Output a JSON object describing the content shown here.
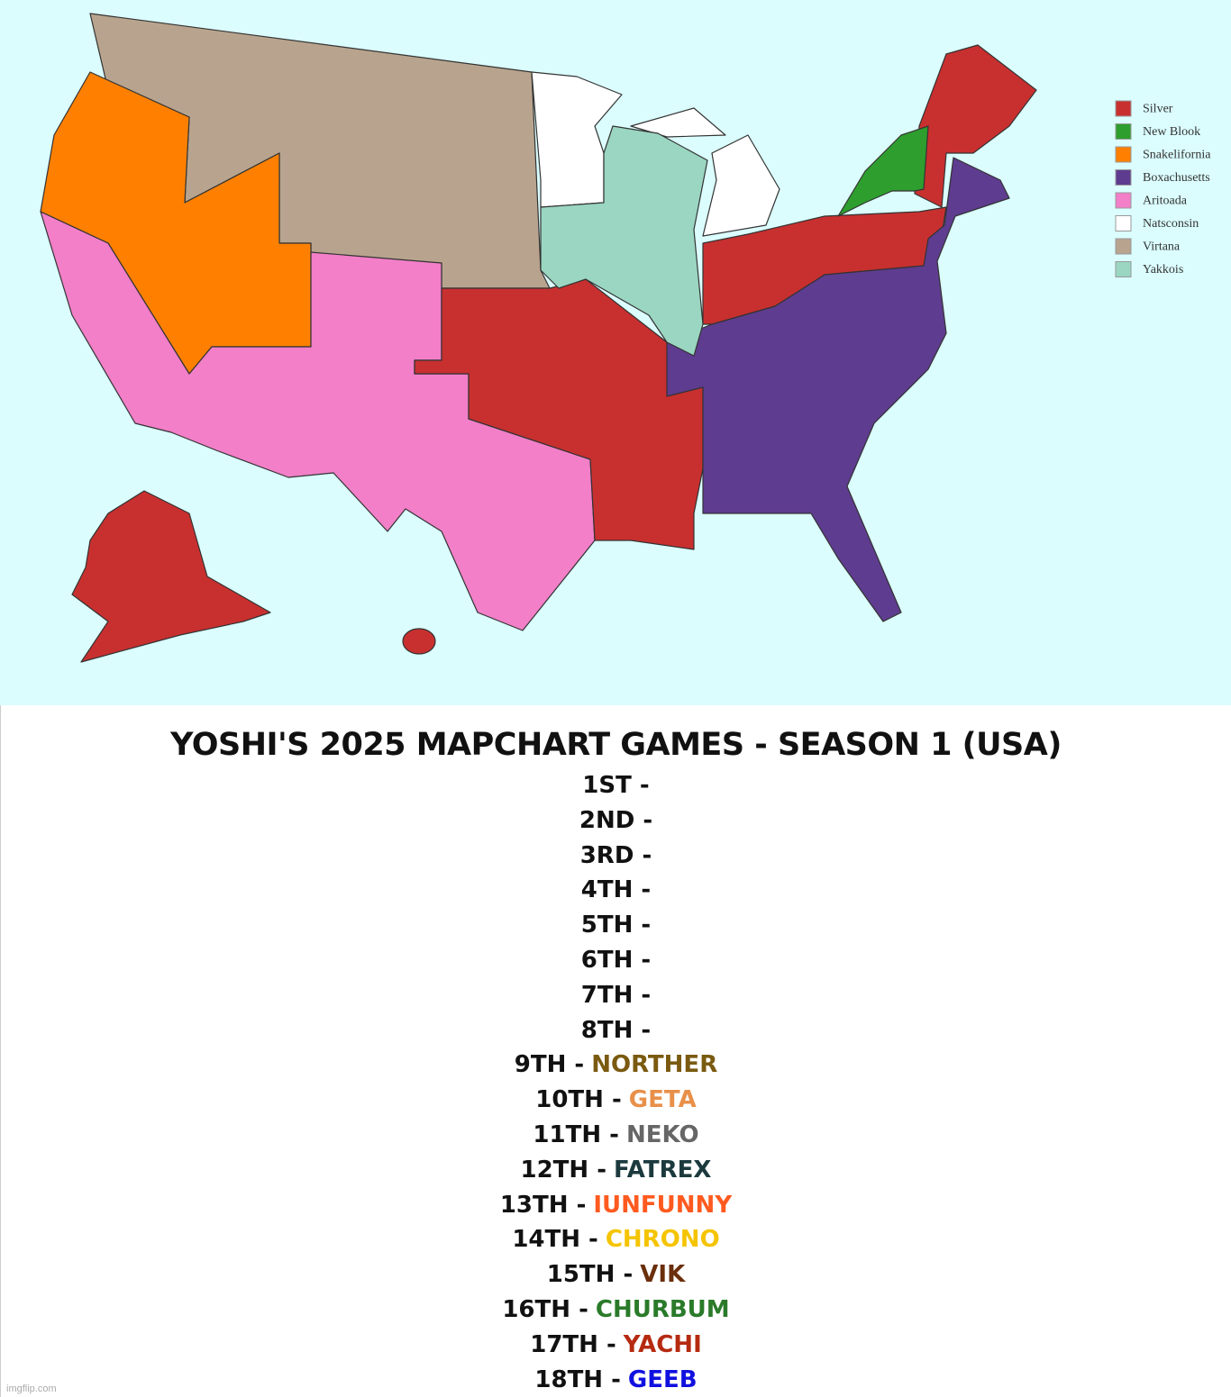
{
  "legend": [
    {
      "name": "Silver",
      "color": "#c8302f"
    },
    {
      "name": "New Blook",
      "color": "#2e9e2e"
    },
    {
      "name": "Snakelifornia",
      "color": "#ff8000"
    },
    {
      "name": "Boxachusetts",
      "color": "#5e3c8f"
    },
    {
      "name": "Aritoada",
      "color": "#f27fc8"
    },
    {
      "name": "Natsconsin",
      "color": "#ffffff"
    },
    {
      "name": "Virtana",
      "color": "#b8a48e"
    },
    {
      "name": "Yakkois",
      "color": "#9ad6c2"
    }
  ],
  "title": "YOSHI'S 2025 MAPCHART GAMES - SEASON 1 (USA)",
  "rankings": [
    {
      "place": "1ST -"
    },
    {
      "place": "2ND -"
    },
    {
      "place": "3RD -"
    },
    {
      "place": "4TH -"
    },
    {
      "place": "5TH -"
    },
    {
      "place": "6TH -"
    },
    {
      "place": "7TH -"
    },
    {
      "place": "8TH -"
    },
    {
      "place": "9TH -",
      "name": "NORTHER",
      "color": "#7a5a10"
    },
    {
      "place": "10TH -",
      "name": "GETA",
      "color": "#e8904a"
    },
    {
      "place": "11TH -",
      "name": "NEKO",
      "color": "#666666"
    },
    {
      "place": "12TH -",
      "name": "FATREX",
      "color": "#1c3a3e"
    },
    {
      "place": "13TH -",
      "name": "IUNFUNNY",
      "color": "#ff5a1f"
    },
    {
      "place": "14TH -",
      "name": "CHRONO",
      "color": "#f5c400"
    },
    {
      "place": "15TH -",
      "name": "VIK",
      "color": "#6b2f0c"
    },
    {
      "place": "16TH -",
      "name": "CHURBUM",
      "color": "#2a7a2a"
    },
    {
      "place": "17TH -",
      "name": "YACHI",
      "color": "#b52a10"
    },
    {
      "place": "18TH -",
      "name": "GEEB",
      "color": "#1010e0"
    }
  ],
  "watermark": "imgflip.com"
}
